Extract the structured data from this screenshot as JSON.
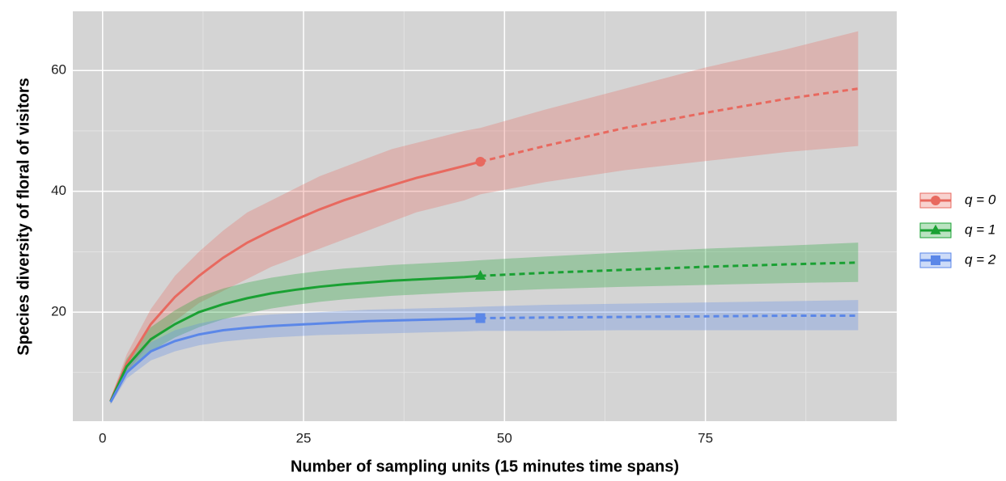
{
  "chart_data": {
    "type": "line",
    "xlabel": "Number of sampling units (15 minutes time spans)",
    "ylabel": "Species diversity of floral of visitors",
    "x": [
      1,
      3,
      6,
      9,
      12,
      15,
      18,
      21,
      24,
      27,
      30,
      33,
      36,
      39,
      42,
      45,
      47,
      55,
      65,
      75,
      85,
      94
    ],
    "reference_x": 47,
    "series": [
      {
        "name": "q = 0",
        "color": "#e8695f",
        "marker": "circle",
        "values": [
          5.3,
          11.5,
          18,
          22.5,
          26,
          29,
          31.5,
          33.5,
          35.3,
          37,
          38.5,
          39.8,
          41,
          42.2,
          43.2,
          44.2,
          44.9,
          47.5,
          50.5,
          53,
          55.3,
          57
        ],
        "lower": [
          4.8,
          10,
          15,
          18.5,
          21.5,
          23.5,
          25.5,
          27.5,
          29,
          30.5,
          32,
          33.5,
          35,
          36.5,
          37.5,
          38.5,
          39.5,
          41.5,
          43.5,
          45,
          46.5,
          47.5
        ],
        "upper": [
          5.8,
          13,
          20.5,
          26,
          30,
          33.5,
          36.5,
          38.5,
          40.5,
          42.5,
          44,
          45.5,
          47,
          48,
          49,
          50,
          50.5,
          53.5,
          57,
          60.5,
          63.5,
          66.5
        ]
      },
      {
        "name": "q = 1",
        "color": "#1aa133",
        "marker": "triangle",
        "values": [
          5.2,
          11,
          15.5,
          18,
          20,
          21.3,
          22.3,
          23.1,
          23.7,
          24.2,
          24.6,
          24.9,
          25.2,
          25.4,
          25.6,
          25.8,
          26,
          26.5,
          27,
          27.5,
          27.9,
          28.2
        ],
        "lower": [
          4.8,
          9.7,
          13.5,
          15.8,
          17.5,
          18.8,
          19.8,
          20.6,
          21.2,
          21.7,
          22.1,
          22.4,
          22.7,
          22.9,
          23.1,
          23.3,
          23.4,
          23.8,
          24.2,
          24.5,
          24.8,
          25
        ],
        "upper": [
          5.6,
          12.3,
          17.5,
          20.3,
          22.5,
          23.9,
          24.9,
          25.7,
          26.3,
          26.8,
          27.2,
          27.5,
          27.8,
          28,
          28.2,
          28.4,
          28.6,
          29.2,
          29.9,
          30.5,
          31,
          31.5
        ]
      },
      {
        "name": "q = 2",
        "color": "#5b87e8",
        "marker": "square",
        "values": [
          5.1,
          10,
          13.5,
          15.2,
          16.3,
          17,
          17.4,
          17.7,
          17.9,
          18.1,
          18.3,
          18.5,
          18.6,
          18.7,
          18.8,
          18.9,
          19,
          19.1,
          19.2,
          19.3,
          19.4,
          19.4
        ],
        "lower": [
          4.7,
          9,
          12,
          13.5,
          14.5,
          15.1,
          15.5,
          15.8,
          16,
          16.2,
          16.3,
          16.4,
          16.5,
          16.6,
          16.7,
          16.8,
          16.9,
          16.9,
          17,
          17,
          17,
          17
        ],
        "upper": [
          5.5,
          11,
          15,
          17,
          18.1,
          18.9,
          19.3,
          19.6,
          19.8,
          20,
          20.2,
          20.4,
          20.5,
          20.6,
          20.7,
          20.8,
          20.9,
          21.2,
          21.4,
          21.6,
          21.8,
          22
        ]
      }
    ],
    "xlim": [
      -3.7,
      98.8
    ],
    "ylim": [
      1.94,
      69.8
    ],
    "xticks": [
      0,
      25,
      50,
      75
    ],
    "yticks": [
      20,
      40,
      60
    ],
    "xminor": [
      12.5,
      37.5,
      62.5,
      87.5
    ],
    "yminor": [
      10,
      30,
      50
    ],
    "grid": true,
    "legend": "right"
  }
}
